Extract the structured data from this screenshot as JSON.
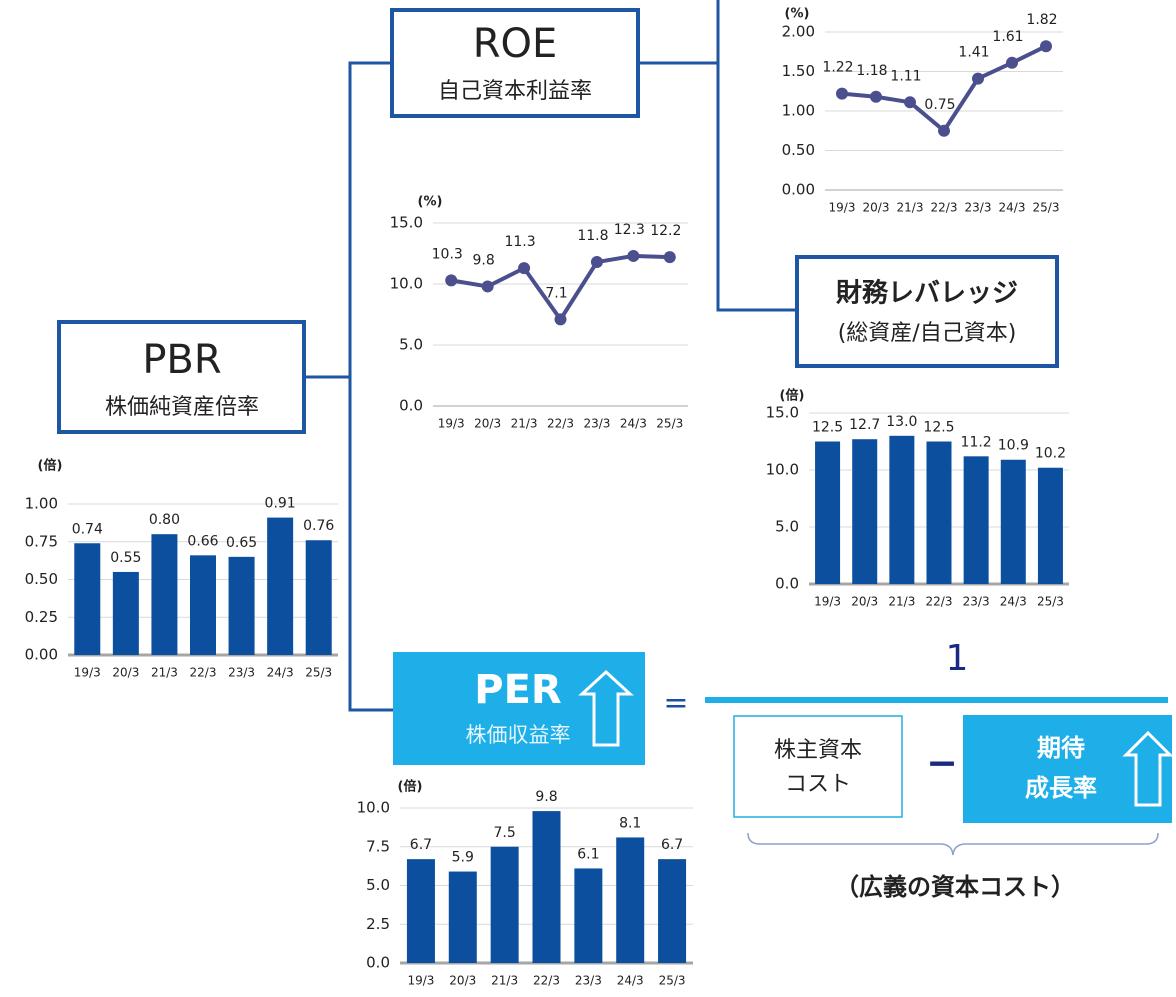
{
  "diagram": {
    "roe_title": "ROE",
    "roe_sub": "自己資本利益率",
    "pbr_title": "PBR",
    "pbr_sub": "株価純資産倍率",
    "per_title": "PER",
    "per_sub": "株価収益率",
    "lev_title": "財務レバレッジ",
    "lev_sub": "(総資産/自己資本)",
    "equals": "=",
    "numerator": "1",
    "cost_line1": "株主資本",
    "cost_line2": "コスト",
    "minus": "−",
    "growth_line1": "期待",
    "growth_line2": "成長率",
    "bracket_note": "（広義の資本コスト）"
  },
  "chart_data": [
    {
      "type": "line",
      "y_unit": "(%)",
      "categories": [
        "19/3",
        "20/3",
        "21/3",
        "22/3",
        "23/3",
        "24/3",
        "25/3"
      ],
      "values": [
        1.22,
        1.18,
        1.11,
        0.75,
        1.41,
        1.61,
        1.82
      ],
      "color": "#4c4f8e",
      "ylim": [
        0,
        2
      ],
      "yticks": [
        {
          "value": 0,
          "label": "0.00"
        },
        {
          "value": 0.5,
          "label": "0.50"
        },
        {
          "value": 1,
          "label": "1.00"
        },
        {
          "value": 1.5,
          "label": "1.50"
        },
        {
          "value": 2,
          "label": "2.00"
        }
      ],
      "grid": true
    },
    {
      "type": "line",
      "y_unit": "(%)",
      "categories": [
        "19/3",
        "20/3",
        "21/3",
        "22/3",
        "23/3",
        "24/3",
        "25/3"
      ],
      "values": [
        10.3,
        9.8,
        11.3,
        7.1,
        11.8,
        12.3,
        12.2
      ],
      "color": "#4c4f8e",
      "ylim": [
        0,
        15
      ],
      "yticks": [
        {
          "value": 0,
          "label": "0.0"
        },
        {
          "value": 5,
          "label": "5.0"
        },
        {
          "value": 10,
          "label": "10.0"
        },
        {
          "value": 15,
          "label": "15.0"
        }
      ],
      "grid": true
    },
    {
      "type": "bar",
      "y_unit": "(倍)",
      "categories": [
        "19/3",
        "20/3",
        "21/3",
        "22/3",
        "23/3",
        "24/3",
        "25/3"
      ],
      "values": [
        0.74,
        0.55,
        0.8,
        0.66,
        0.65,
        0.91,
        0.76
      ],
      "value_labels": [
        "0.74",
        "0.55",
        "0.80",
        "0.66",
        "0.65",
        "0.91",
        "0.76"
      ],
      "color": "#0b4f9e",
      "ylim": [
        0,
        1
      ],
      "yticks": [
        {
          "value": 0,
          "label": "0.00"
        },
        {
          "value": 0.25,
          "label": "0.25"
        },
        {
          "value": 0.5,
          "label": "0.50"
        },
        {
          "value": 0.75,
          "label": "0.75"
        },
        {
          "value": 1,
          "label": "1.00"
        }
      ],
      "grid": true
    },
    {
      "type": "bar",
      "y_unit": "(倍)",
      "categories": [
        "19/3",
        "20/3",
        "21/3",
        "22/3",
        "23/3",
        "24/3",
        "25/3"
      ],
      "values": [
        12.5,
        12.7,
        13,
        12.5,
        11.2,
        10.9,
        10.2
      ],
      "value_labels": [
        "12.5",
        "12.7",
        "13.0",
        "12.5",
        "11.2",
        "10.9",
        "10.2"
      ],
      "color": "#0b4f9e",
      "ylim": [
        0,
        15
      ],
      "yticks": [
        {
          "value": 0,
          "label": "0.0"
        },
        {
          "value": 5,
          "label": "5.0"
        },
        {
          "value": 10,
          "label": "10.0"
        },
        {
          "value": 15,
          "label": "15.0"
        }
      ],
      "grid": true
    },
    {
      "type": "bar",
      "y_unit": "(倍)",
      "categories": [
        "19/3",
        "20/3",
        "21/3",
        "22/3",
        "23/3",
        "24/3",
        "25/3"
      ],
      "values": [
        6.7,
        5.9,
        7.5,
        9.8,
        6.1,
        8.1,
        6.7
      ],
      "color": "#0b4f9e",
      "ylim": [
        0,
        10
      ],
      "yticks": [
        {
          "value": 0,
          "label": "0.0"
        },
        {
          "value": 2.5,
          "label": "2.5"
        },
        {
          "value": 5,
          "label": "5.0"
        },
        {
          "value": 7.5,
          "label": "7.5"
        },
        {
          "value": 10,
          "label": "10.0"
        }
      ],
      "grid": true
    }
  ]
}
